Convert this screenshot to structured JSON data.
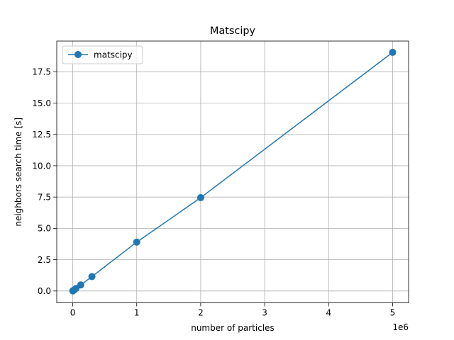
{
  "chart_data": {
    "type": "line",
    "title": "Matscipy",
    "xlabel": "number of particles",
    "ylabel": "neighbors search time [s]",
    "x_offset_label": "1e6",
    "xlim": [
      -250000,
      5250000
    ],
    "ylim": [
      -0.95,
      19.95
    ],
    "x_ticks": [
      0,
      1000000,
      2000000,
      3000000,
      4000000,
      5000000
    ],
    "x_tick_labels": [
      "0",
      "1",
      "2",
      "3",
      "4",
      "5"
    ],
    "y_ticks": [
      0.0,
      2.5,
      5.0,
      7.5,
      10.0,
      12.5,
      15.0,
      17.5
    ],
    "y_tick_labels": [
      "0.0",
      "2.5",
      "5.0",
      "7.5",
      "10.0",
      "12.5",
      "15.0",
      "17.5"
    ],
    "grid": true,
    "legend_position": "upper-left",
    "series": [
      {
        "name": "matscipy",
        "color": "#1f77b4",
        "marker": "circle",
        "x": [
          1000,
          5000,
          10000,
          20000,
          50000,
          125000,
          300000,
          1000000,
          2000000,
          5000000
        ],
        "y": [
          0.004,
          0.02,
          0.04,
          0.08,
          0.2,
          0.48,
          1.15,
          3.9,
          7.45,
          19.05
        ]
      }
    ]
  }
}
